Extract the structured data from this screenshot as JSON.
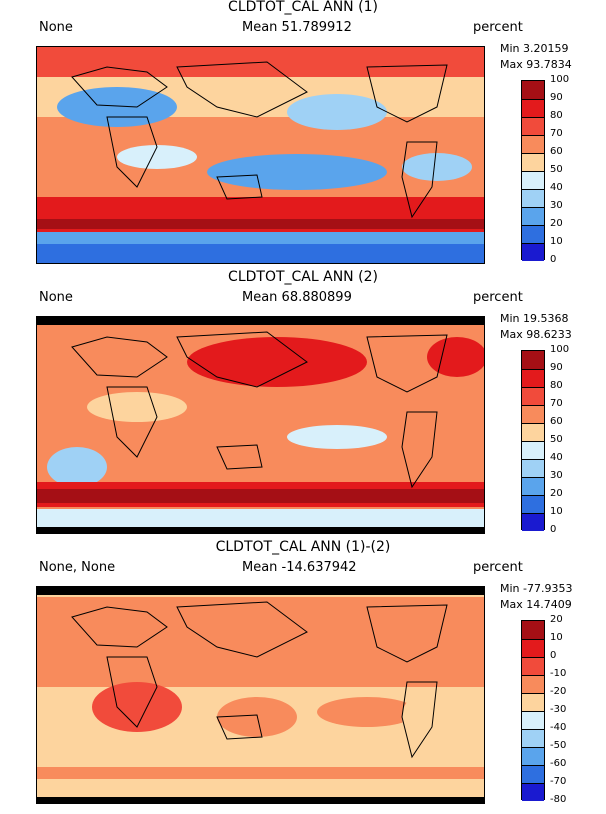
{
  "panels": [
    {
      "title": "CLDTOT_CAL ANN (1)",
      "left_label": "None",
      "mean_label": "Mean 51.789912",
      "units": "percent",
      "min_label": "Min 3.20159",
      "max_label": "Max 93.7834",
      "levels": [
        "100",
        "90",
        "80",
        "70",
        "60",
        "50",
        "40",
        "30",
        "20",
        "10",
        "0"
      ],
      "colors": [
        "#a50f15",
        "#e31a1c",
        "#f14b3b",
        "#f88b5c",
        "#fdd49e",
        "#d8f0fb",
        "#9fd1f5",
        "#5aa4ec",
        "#2e6fe0",
        "#1a1ad0"
      ]
    },
    {
      "title": "CLDTOT_CAL ANN (2)",
      "left_label": "None",
      "mean_label": "Mean 68.880899",
      "units": "percent",
      "min_label": "Min 19.5368",
      "max_label": "Max 98.6233",
      "levels": [
        "100",
        "90",
        "80",
        "70",
        "60",
        "50",
        "40",
        "30",
        "20",
        "10",
        "0"
      ],
      "colors": [
        "#a50f15",
        "#e31a1c",
        "#f14b3b",
        "#f88b5c",
        "#fdd49e",
        "#d8f0fb",
        "#9fd1f5",
        "#5aa4ec",
        "#2e6fe0",
        "#1a1ad0"
      ]
    },
    {
      "title": "CLDTOT_CAL ANN (1)-(2)",
      "left_label": "None, None",
      "mean_label": "Mean -14.637942",
      "units": "percent",
      "min_label": "Min -77.9353",
      "max_label": "Max 14.7409",
      "levels": [
        "20",
        "10",
        "0",
        "-10",
        "-20",
        "-30",
        "-40",
        "-50",
        "-60",
        "-70",
        "-80"
      ],
      "colors": [
        "#a50f15",
        "#e31a1c",
        "#f14b3b",
        "#f88b5c",
        "#fdd49e",
        "#d8f0fb",
        "#9fd1f5",
        "#5aa4ec",
        "#2e6fe0",
        "#1a1ad0"
      ]
    }
  ]
}
